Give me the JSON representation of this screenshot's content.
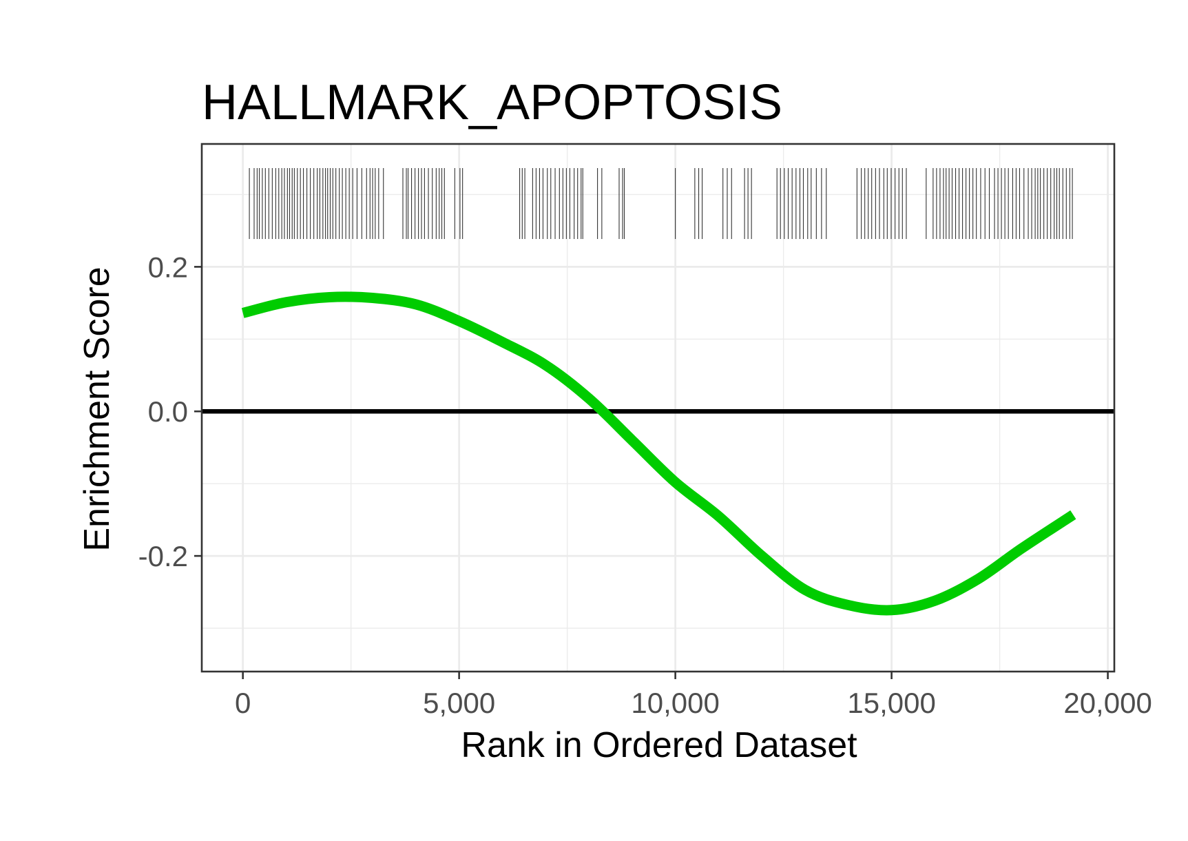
{
  "chart_data": {
    "type": "line",
    "title": "HALLMARK_APOPTOSIS",
    "xlabel": "Rank in Ordered Dataset",
    "ylabel": "Enrichment Score",
    "xlim": [
      -950,
      20150
    ],
    "ylim": [
      -0.36,
      0.37
    ],
    "x_ticks": [
      0,
      5000,
      10000,
      15000,
      20000
    ],
    "x_tick_labels": [
      "0",
      "5,000",
      "10,000",
      "15,000",
      "20,000"
    ],
    "y_ticks": [
      -0.2,
      0.0,
      0.2
    ],
    "y_tick_labels": [
      "-0.2",
      "0.0",
      "0.2"
    ],
    "y_minor_ticks": [
      -0.3,
      -0.1,
      0.1,
      0.3
    ],
    "x_minor_ticks": [
      2500,
      7500,
      12500,
      17500
    ],
    "grid": true,
    "reference_line": {
      "y": 0,
      "color": "#000000"
    },
    "series": [
      {
        "color": "#00cc00",
        "x": [
          0,
          1000,
          2000,
          3000,
          4000,
          5000,
          6000,
          7000,
          8000,
          9000,
          10000,
          11000,
          12000,
          13000,
          14000,
          15000,
          16000,
          17000,
          18000,
          19200
        ],
        "y": [
          0.136,
          0.151,
          0.158,
          0.157,
          0.148,
          0.125,
          0.096,
          0.064,
          0.018,
          -0.04,
          -0.098,
          -0.145,
          -0.2,
          -0.247,
          -0.268,
          -0.275,
          -0.262,
          -0.232,
          -0.19,
          -0.143
        ]
      }
    ],
    "gene_hits": [
      150,
      260,
      330,
      380,
      450,
      520,
      600,
      680,
      760,
      830,
      900,
      960,
      1030,
      1080,
      1140,
      1190,
      1260,
      1330,
      1400,
      1480,
      1560,
      1640,
      1720,
      1780,
      1850,
      1910,
      1960,
      2020,
      2080,
      2150,
      2230,
      2300,
      2380,
      2460,
      2540,
      2640,
      2750,
      2860,
      2940,
      3000,
      3060,
      3140,
      3250,
      3700,
      3780,
      3820,
      3900,
      3980,
      4060,
      4130,
      4200,
      4290,
      4380,
      4470,
      4540,
      4600,
      4660,
      4900,
      5020,
      5080,
      6400,
      6460,
      6520,
      6700,
      6780,
      6860,
      6940,
      7040,
      7120,
      7220,
      7320,
      7400,
      7480,
      7560,
      7660,
      7740,
      7820,
      7860,
      8200,
      8300,
      8700,
      8780,
      8820,
      10000,
      10450,
      10540,
      10620,
      11100,
      11200,
      11300,
      11600,
      11680,
      11760,
      12350,
      12430,
      12520,
      12610,
      12700,
      12790,
      12880,
      12960,
      13060,
      13140,
      13260,
      13380,
      13490,
      14200,
      14300,
      14380,
      14460,
      14540,
      14630,
      14720,
      14820,
      14900,
      14990,
      15080,
      15170,
      15250,
      15340,
      15800,
      15960,
      16040,
      16120,
      16200,
      16260,
      16330,
      16400,
      16480,
      16560,
      16640,
      16720,
      16800,
      16880,
      16960,
      17060,
      17160,
      17260,
      17380,
      17460,
      17540,
      17620,
      17700,
      17800,
      17880,
      17960,
      18060,
      18160,
      18240,
      18320,
      18380,
      18440,
      18520,
      18600,
      18680,
      18760,
      18820,
      18880,
      18960,
      19040,
      19120,
      19180
    ]
  }
}
